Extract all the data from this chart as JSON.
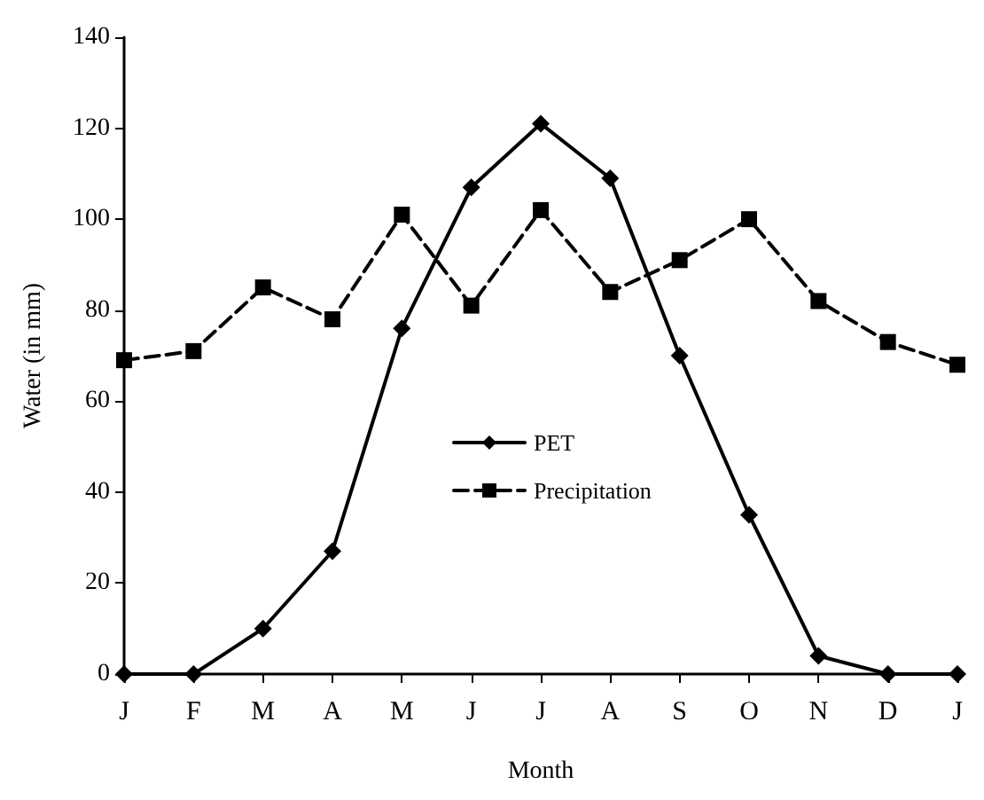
{
  "chart_data": {
    "type": "line",
    "xlabel": "Month",
    "ylabel": "Water (in mm)",
    "categories": [
      "J",
      "F",
      "M",
      "A",
      "M",
      "J",
      "J",
      "A",
      "S",
      "O",
      "N",
      "D",
      "J"
    ],
    "series": [
      {
        "name": "PET",
        "color": "#000000",
        "marker": "diamond",
        "line_style": "solid",
        "values": [
          0,
          0,
          10,
          27,
          76,
          107,
          121,
          109,
          70,
          35,
          4,
          0,
          0
        ]
      },
      {
        "name": "Precipitation",
        "color": "#000000",
        "marker": "square",
        "line_style": "dashed",
        "values": [
          69,
          71,
          85,
          78,
          101,
          81,
          102,
          84,
          91,
          100,
          82,
          73,
          68
        ]
      }
    ],
    "ylim": [
      0,
      140
    ],
    "yticks": [
      0,
      20,
      40,
      60,
      80,
      100,
      120,
      140
    ],
    "grid": false,
    "legend": "center"
  }
}
